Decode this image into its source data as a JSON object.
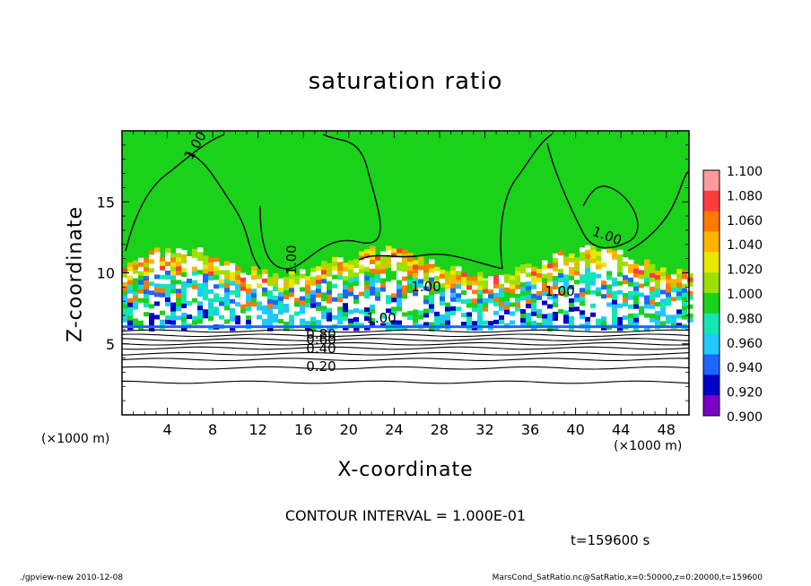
{
  "chart_data": {
    "type": "heatmap",
    "title": "saturation ratio",
    "xlabel": "X-coordinate",
    "ylabel": "Z-coordinate",
    "x_unit": "(×1000 m)",
    "x_unit_right": "(×1000 m)",
    "xlim": [
      0,
      50
    ],
    "ylim": [
      0,
      20
    ],
    "x_ticks": [
      "4",
      "8",
      "12",
      "16",
      "20",
      "24",
      "28",
      "32",
      "36",
      "40",
      "44",
      "48"
    ],
    "y_ticks": [
      "5",
      "10",
      "15"
    ],
    "colorbar": {
      "levels": [
        "1.100",
        "1.080",
        "1.060",
        "1.040",
        "1.020",
        "1.000",
        "0.980",
        "0.960",
        "0.940",
        "0.920",
        "0.900"
      ],
      "colors": [
        "#ff9a9a",
        "#ff3c3c",
        "#ff7a00",
        "#ffb400",
        "#e8e800",
        "#9be000",
        "#1ad21a",
        "#12e6b4",
        "#20c8ff",
        "#1e64ff",
        "#0000c8",
        "#7a00c8"
      ]
    },
    "contour_labels": [
      "1.00",
      "1.00",
      "1.00",
      "1.00",
      "1.00",
      "1.00",
      "0.80",
      "0.60",
      "0.40",
      "0.20"
    ],
    "contour_interval": "CONTOUR INTERVAL = 1.000E-01",
    "time": "t=159600 s"
  },
  "footer": {
    "left": "./gpview-new   2010-12-08",
    "right": "MarsCond_SatRatio.nc@SatRatio,x=0:50000,z=0:20000,t=159600"
  }
}
